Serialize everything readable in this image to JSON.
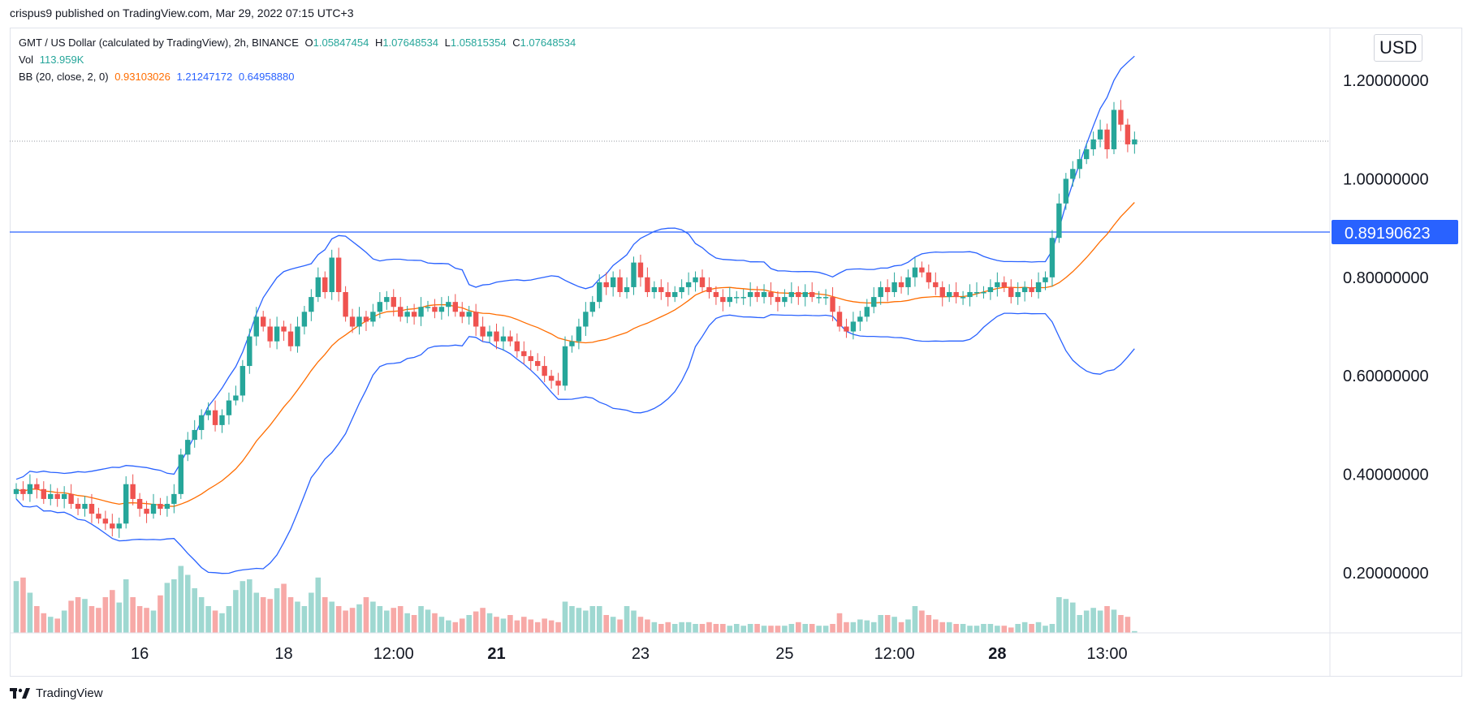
{
  "header": {
    "published": "crispus9 published on TradingView.com, Mar 29, 2022 07:15 UTC+3"
  },
  "legend": {
    "symbol": "GMT / US Dollar (calculated by TradingView), 2h, BINANCE",
    "o_label": "O",
    "o_value": "1.05847454",
    "h_label": "H",
    "h_value": "1.07648534",
    "l_label": "L",
    "l_value": "1.05815354",
    "c_label": "C",
    "c_value": "1.07648534",
    "vol_label": "Vol",
    "vol_value": "113.959K",
    "bb_label": "BB (20, close, 2, 0)",
    "bb_mid": "0.93103026",
    "bb_upper": "1.21247172",
    "bb_lower": "0.64958880"
  },
  "currency": "USD",
  "footer": {
    "brand": "TradingView"
  },
  "colors": {
    "up": "#26a69a",
    "down": "#ef5350",
    "up_vol": "#9fd8d1",
    "down_vol": "#f7a9a7",
    "bb_mid": "#ff6d00",
    "bb_band": "#2962ff",
    "hline": "#2962ff",
    "grid": "#e0e3eb"
  },
  "chart_data": {
    "type": "candlestick",
    "symbol": "GMT/USD",
    "interval": "2h",
    "ylim": [
      0.1,
      1.3
    ],
    "y_ticks": [
      "1.20000000",
      "1.00000000",
      "0.80000000",
      "0.60000000",
      "0.40000000",
      "0.20000000"
    ],
    "y_tick_values": [
      1.2,
      1.0,
      0.8,
      0.6,
      0.4,
      0.2
    ],
    "x_ticks": [
      "16",
      "18",
      "12:00",
      "21",
      "23",
      "25",
      "12:00",
      "28",
      "13:00"
    ],
    "x_tick_bars": [
      18,
      39,
      55,
      70,
      91,
      112,
      128,
      143,
      159
    ],
    "bold_x_ticks": [
      "21",
      "28"
    ],
    "horizontal_line": {
      "value": 0.8919,
      "label": "0.89190623"
    },
    "last_price": 1.0765,
    "closes": [
      0.37,
      0.36,
      0.38,
      0.37,
      0.35,
      0.36,
      0.35,
      0.36,
      0.34,
      0.33,
      0.34,
      0.32,
      0.31,
      0.3,
      0.29,
      0.3,
      0.38,
      0.35,
      0.33,
      0.32,
      0.34,
      0.33,
      0.34,
      0.36,
      0.44,
      0.47,
      0.49,
      0.52,
      0.53,
      0.5,
      0.52,
      0.55,
      0.56,
      0.62,
      0.68,
      0.72,
      0.7,
      0.67,
      0.7,
      0.69,
      0.66,
      0.7,
      0.73,
      0.76,
      0.8,
      0.77,
      0.84,
      0.77,
      0.72,
      0.7,
      0.72,
      0.71,
      0.73,
      0.75,
      0.76,
      0.74,
      0.72,
      0.73,
      0.72,
      0.74,
      0.74,
      0.73,
      0.74,
      0.75,
      0.73,
      0.72,
      0.73,
      0.7,
      0.68,
      0.69,
      0.67,
      0.68,
      0.67,
      0.65,
      0.64,
      0.63,
      0.62,
      0.6,
      0.59,
      0.58,
      0.66,
      0.67,
      0.7,
      0.73,
      0.75,
      0.79,
      0.78,
      0.8,
      0.77,
      0.78,
      0.83,
      0.8,
      0.77,
      0.78,
      0.77,
      0.76,
      0.77,
      0.78,
      0.79,
      0.8,
      0.78,
      0.77,
      0.76,
      0.75,
      0.76,
      0.76,
      0.76,
      0.77,
      0.76,
      0.77,
      0.76,
      0.75,
      0.76,
      0.77,
      0.76,
      0.77,
      0.76,
      0.76,
      0.76,
      0.73,
      0.7,
      0.69,
      0.71,
      0.72,
      0.74,
      0.76,
      0.78,
      0.77,
      0.79,
      0.78,
      0.8,
      0.82,
      0.81,
      0.79,
      0.78,
      0.76,
      0.77,
      0.76,
      0.76,
      0.77,
      0.77,
      0.77,
      0.78,
      0.79,
      0.78,
      0.76,
      0.77,
      0.78,
      0.77,
      0.79,
      0.8,
      0.88,
      0.95,
      1.0,
      1.02,
      1.04,
      1.06,
      1.08,
      1.1,
      1.06,
      1.14,
      1.11,
      1.07,
      1.08
    ],
    "volume_levels": [
      0.58,
      0.62,
      0.45,
      0.3,
      0.22,
      0.18,
      0.16,
      0.25,
      0.36,
      0.4,
      0.38,
      0.3,
      0.28,
      0.4,
      0.48,
      0.34,
      0.6,
      0.4,
      0.3,
      0.28,
      0.25,
      0.42,
      0.56,
      0.6,
      0.75,
      0.65,
      0.5,
      0.4,
      0.3,
      0.25,
      0.22,
      0.3,
      0.48,
      0.58,
      0.6,
      0.45,
      0.4,
      0.38,
      0.5,
      0.55,
      0.4,
      0.35,
      0.3,
      0.45,
      0.62,
      0.4,
      0.35,
      0.3,
      0.25,
      0.28,
      0.32,
      0.4,
      0.35,
      0.3,
      0.25,
      0.28,
      0.3,
      0.22,
      0.2,
      0.3,
      0.26,
      0.22,
      0.18,
      0.14,
      0.12,
      0.16,
      0.2,
      0.24,
      0.28,
      0.22,
      0.18,
      0.16,
      0.2,
      0.14,
      0.18,
      0.15,
      0.12,
      0.16,
      0.14,
      0.12,
      0.35,
      0.3,
      0.28,
      0.25,
      0.3,
      0.3,
      0.2,
      0.18,
      0.15,
      0.3,
      0.25,
      0.18,
      0.15,
      0.12,
      0.1,
      0.12,
      0.1,
      0.12,
      0.12,
      0.1,
      0.1,
      0.12,
      0.1,
      0.1,
      0.08,
      0.1,
      0.08,
      0.1,
      0.1,
      0.08,
      0.08,
      0.08,
      0.08,
      0.1,
      0.12,
      0.1,
      0.1,
      0.08,
      0.08,
      0.1,
      0.22,
      0.12,
      0.12,
      0.15,
      0.14,
      0.12,
      0.2,
      0.2,
      0.18,
      0.12,
      0.15,
      0.3,
      0.25,
      0.2,
      0.15,
      0.12,
      0.12,
      0.1,
      0.1,
      0.08,
      0.08,
      0.1,
      0.1,
      0.08,
      0.08,
      0.06,
      0.1,
      0.12,
      0.1,
      0.12,
      0.08,
      0.1,
      0.4,
      0.38,
      0.34,
      0.2,
      0.25,
      0.28,
      0.25,
      0.3,
      0.26,
      0.2,
      0.18,
      0.02
    ]
  }
}
